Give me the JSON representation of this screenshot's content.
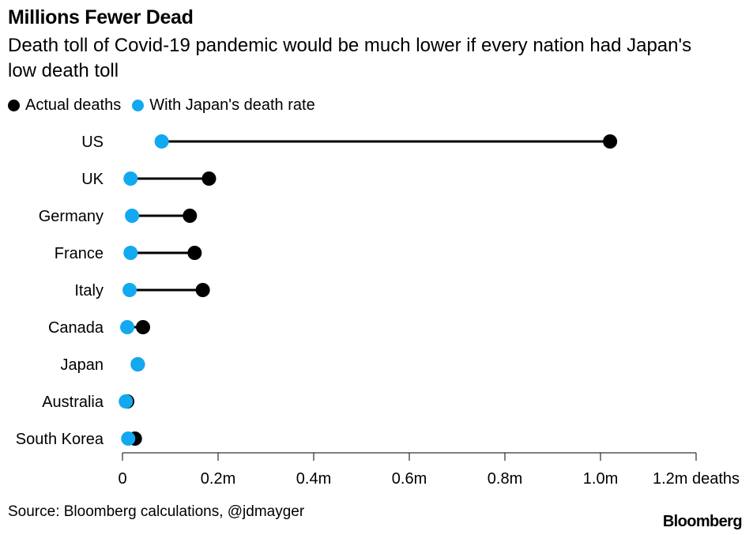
{
  "title": "Millions Fewer Dead",
  "subtitle": "Death toll of Covid-19 pandemic would be much lower if every nation had Japan's low death toll",
  "source": "Source: Bloomberg calculations, @jdmayger",
  "brand": "Bloomberg",
  "colors": {
    "actual": "#000000",
    "japan_rate": "#12a9f0",
    "axis": "#000000"
  },
  "chart_data": {
    "type": "dumbbell",
    "title": "Millions Fewer Dead",
    "xlabel": "deaths",
    "ylabel": "",
    "xlim": [
      0,
      1.2
    ],
    "legend_position": "top-left",
    "grid": false,
    "categories": [
      "US",
      "UK",
      "Germany",
      "France",
      "Italy",
      "Canada",
      "Japan",
      "Australia",
      "South Korea"
    ],
    "series": [
      {
        "name": "Actual deaths",
        "color": "#000000",
        "values": [
          1.02,
          0.181,
          0.141,
          0.151,
          0.168,
          0.043,
          0.032,
          0.01,
          0.026
        ]
      },
      {
        "name": "With Japan's death rate",
        "color": "#12a9f0",
        "values": [
          0.082,
          0.017,
          0.02,
          0.017,
          0.015,
          0.01,
          0.032,
          0.007,
          0.012
        ]
      }
    ],
    "ticks": [
      {
        "value": 0,
        "label": "0"
      },
      {
        "value": 0.2,
        "label": "0.2m"
      },
      {
        "value": 0.4,
        "label": "0.4m"
      },
      {
        "value": 0.6,
        "label": "0.6m"
      },
      {
        "value": 0.8,
        "label": "0.8m"
      },
      {
        "value": 1.0,
        "label": "1.0m"
      },
      {
        "value": 1.2,
        "label": "1.2m deaths"
      }
    ]
  }
}
